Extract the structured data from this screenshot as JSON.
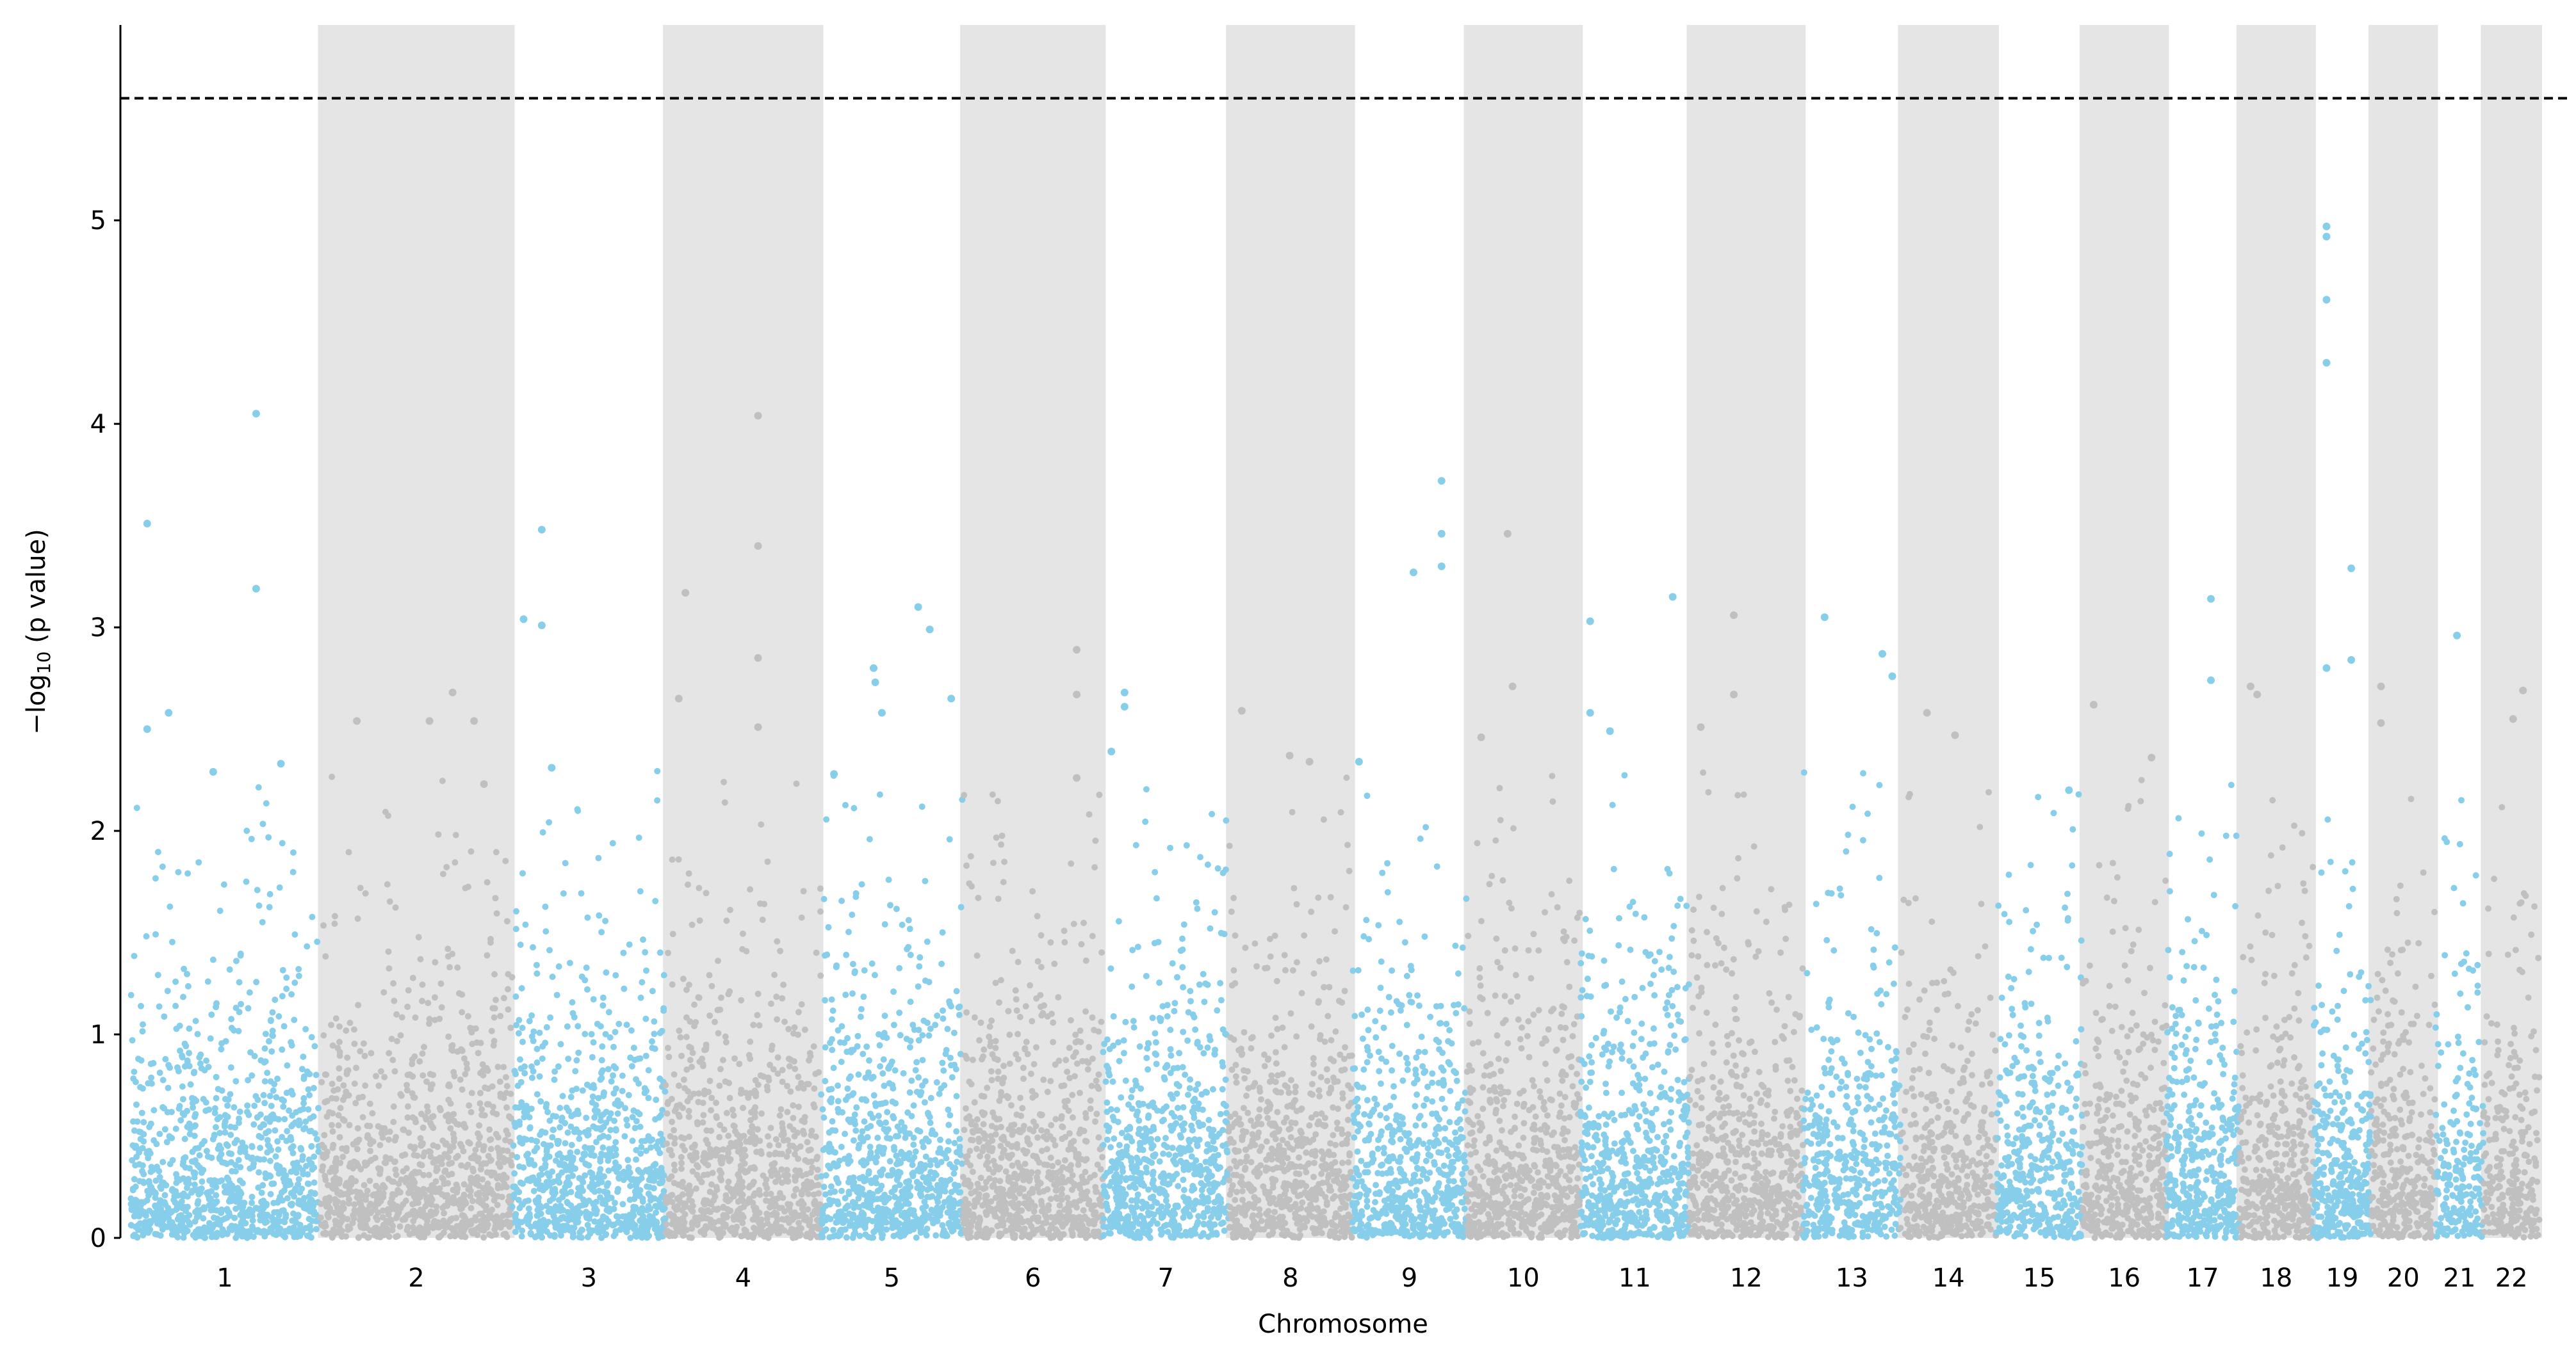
{
  "chart_data": {
    "type": "scatter",
    "subtype": "manhattan",
    "title": "",
    "xlabel": "Chromosome",
    "ylabel": {
      "prefix": "−log",
      "sub": "10",
      "suffix": " (p value)"
    },
    "ylim": [
      0,
      5.96
    ],
    "yticks": [
      0,
      1,
      2,
      3,
      4,
      5
    ],
    "threshold": 5.6,
    "grid": false,
    "legend": "none",
    "colors": {
      "odd": "#87CEEB",
      "even": "#C0C0C0",
      "band": "#E5E5E5",
      "threshold": "#000000"
    },
    "x_units": "cumulative SNP index",
    "chromosomes": [
      {
        "label": "1",
        "start": 0,
        "end": 114,
        "n": 1000
      },
      {
        "label": "2",
        "start": 115,
        "end": 231,
        "n": 1000
      },
      {
        "label": "3",
        "start": 231,
        "end": 324,
        "n": 850
      },
      {
        "label": "4",
        "start": 324,
        "end": 418,
        "n": 800
      },
      {
        "label": "5",
        "start": 418,
        "end": 504,
        "n": 780
      },
      {
        "label": "6",
        "start": 504,
        "end": 589,
        "n": 760
      },
      {
        "label": "7",
        "start": 589,
        "end": 665,
        "n": 700
      },
      {
        "label": "8",
        "start": 665,
        "end": 740,
        "n": 680
      },
      {
        "label": "9",
        "start": 740,
        "end": 809,
        "n": 600
      },
      {
        "label": "10",
        "start": 809,
        "end": 878,
        "n": 620
      },
      {
        "label": "11",
        "start": 878,
        "end": 944,
        "n": 620
      },
      {
        "label": "12",
        "start": 944,
        "end": 1013,
        "n": 600
      },
      {
        "label": "13",
        "start": 1013,
        "end": 1072,
        "n": 480
      },
      {
        "label": "14",
        "start": 1072,
        "end": 1130,
        "n": 450
      },
      {
        "label": "15",
        "start": 1130,
        "end": 1182,
        "n": 430
      },
      {
        "label": "16",
        "start": 1182,
        "end": 1233,
        "n": 440
      },
      {
        "label": "17",
        "start": 1233,
        "end": 1277,
        "n": 420
      },
      {
        "label": "18",
        "start": 1277,
        "end": 1322,
        "n": 400
      },
      {
        "label": "19",
        "start": 1322,
        "end": 1357,
        "n": 360
      },
      {
        "label": "20",
        "start": 1357,
        "end": 1396,
        "n": 340
      },
      {
        "label": "21",
        "start": 1396,
        "end": 1425,
        "n": 220
      },
      {
        "label": "22",
        "start": 1425,
        "end": 1459,
        "n": 260
      }
    ],
    "top_hits": [
      {
        "chr": "1",
        "x": 10,
        "y": 3.51
      },
      {
        "chr": "1",
        "x": 76,
        "y": 4.05
      },
      {
        "chr": "1",
        "x": 76,
        "y": 3.19
      },
      {
        "chr": "1",
        "x": 23,
        "y": 2.58
      },
      {
        "chr": "1",
        "x": 10,
        "y": 2.5
      },
      {
        "chr": "1",
        "x": 50,
        "y": 2.29
      },
      {
        "chr": "1",
        "x": 91,
        "y": 2.33
      },
      {
        "chr": "2",
        "x": 195,
        "y": 2.68
      },
      {
        "chr": "2",
        "x": 137,
        "y": 2.54
      },
      {
        "chr": "2",
        "x": 181,
        "y": 2.54
      },
      {
        "chr": "2",
        "x": 208,
        "y": 2.54
      },
      {
        "chr": "2",
        "x": 214,
        "y": 2.23
      },
      {
        "chr": "3",
        "x": 249,
        "y": 3.48
      },
      {
        "chr": "3",
        "x": 238,
        "y": 3.04
      },
      {
        "chr": "3",
        "x": 249,
        "y": 3.01
      },
      {
        "chr": "3",
        "x": 255,
        "y": 2.31
      },
      {
        "chr": "4",
        "x": 380,
        "y": 4.04
      },
      {
        "chr": "4",
        "x": 380,
        "y": 3.4
      },
      {
        "chr": "4",
        "x": 336,
        "y": 3.17
      },
      {
        "chr": "4",
        "x": 380,
        "y": 2.85
      },
      {
        "chr": "4",
        "x": 332,
        "y": 2.65
      },
      {
        "chr": "4",
        "x": 380,
        "y": 2.51
      },
      {
        "chr": "5",
        "x": 477,
        "y": 3.1
      },
      {
        "chr": "5",
        "x": 450,
        "y": 2.8
      },
      {
        "chr": "5",
        "x": 451,
        "y": 2.73
      },
      {
        "chr": "5",
        "x": 484,
        "y": 2.99
      },
      {
        "chr": "5",
        "x": 455,
        "y": 2.58
      },
      {
        "chr": "5",
        "x": 497,
        "y": 2.65
      },
      {
        "chr": "5",
        "x": 426,
        "y": 2.28
      },
      {
        "chr": "6",
        "x": 573,
        "y": 2.89
      },
      {
        "chr": "6",
        "x": 573,
        "y": 2.67
      },
      {
        "chr": "6",
        "x": 573,
        "y": 2.26
      },
      {
        "chr": "7",
        "x": 602,
        "y": 2.68
      },
      {
        "chr": "7",
        "x": 602,
        "y": 2.61
      },
      {
        "chr": "7",
        "x": 594,
        "y": 2.39
      },
      {
        "chr": "8",
        "x": 673,
        "y": 2.59
      },
      {
        "chr": "8",
        "x": 702,
        "y": 2.37
      },
      {
        "chr": "8",
        "x": 714,
        "y": 2.34
      },
      {
        "chr": "9",
        "x": 794,
        "y": 3.72
      },
      {
        "chr": "9",
        "x": 794,
        "y": 3.46
      },
      {
        "chr": "9",
        "x": 777,
        "y": 3.27
      },
      {
        "chr": "9",
        "x": 794,
        "y": 3.3
      },
      {
        "chr": "9",
        "x": 744,
        "y": 2.34
      },
      {
        "chr": "10",
        "x": 834,
        "y": 3.46
      },
      {
        "chr": "10",
        "x": 837,
        "y": 2.71
      },
      {
        "chr": "10",
        "x": 818,
        "y": 2.46
      },
      {
        "chr": "11",
        "x": 884,
        "y": 3.03
      },
      {
        "chr": "11",
        "x": 934,
        "y": 3.15
      },
      {
        "chr": "11",
        "x": 884,
        "y": 2.58
      },
      {
        "chr": "11",
        "x": 896,
        "y": 2.49
      },
      {
        "chr": "12",
        "x": 971,
        "y": 3.06
      },
      {
        "chr": "12",
        "x": 971,
        "y": 2.67
      },
      {
        "chr": "12",
        "x": 951,
        "y": 2.51
      },
      {
        "chr": "13",
        "x": 1026,
        "y": 3.05
      },
      {
        "chr": "13",
        "x": 1061,
        "y": 2.87
      },
      {
        "chr": "13",
        "x": 1067,
        "y": 2.76
      },
      {
        "chr": "14",
        "x": 1088,
        "y": 2.58
      },
      {
        "chr": "14",
        "x": 1105,
        "y": 2.47
      },
      {
        "chr": "15",
        "x": 1174,
        "y": 2.2
      },
      {
        "chr": "16",
        "x": 1189,
        "y": 2.62
      },
      {
        "chr": "16",
        "x": 1224,
        "y": 2.36
      },
      {
        "chr": "17",
        "x": 1260,
        "y": 3.14
      },
      {
        "chr": "17",
        "x": 1260,
        "y": 2.74
      },
      {
        "chr": "18",
        "x": 1284,
        "y": 2.71
      },
      {
        "chr": "18",
        "x": 1288,
        "y": 2.67
      },
      {
        "chr": "19",
        "x": 1330,
        "y": 4.97
      },
      {
        "chr": "19",
        "x": 1330,
        "y": 4.92
      },
      {
        "chr": "19",
        "x": 1330,
        "y": 4.61
      },
      {
        "chr": "19",
        "x": 1330,
        "y": 4.3
      },
      {
        "chr": "19",
        "x": 1345,
        "y": 3.29
      },
      {
        "chr": "19",
        "x": 1345,
        "y": 2.84
      },
      {
        "chr": "19",
        "x": 1330,
        "y": 2.8
      },
      {
        "chr": "20",
        "x": 1363,
        "y": 2.71
      },
      {
        "chr": "20",
        "x": 1363,
        "y": 2.53
      },
      {
        "chr": "21",
        "x": 1409,
        "y": 2.96
      },
      {
        "chr": "22",
        "x": 1449,
        "y": 2.69
      },
      {
        "chr": "22",
        "x": 1443,
        "y": 2.55
      }
    ],
    "background_distribution": "-log10(uniform p), capped below 2.3"
  }
}
